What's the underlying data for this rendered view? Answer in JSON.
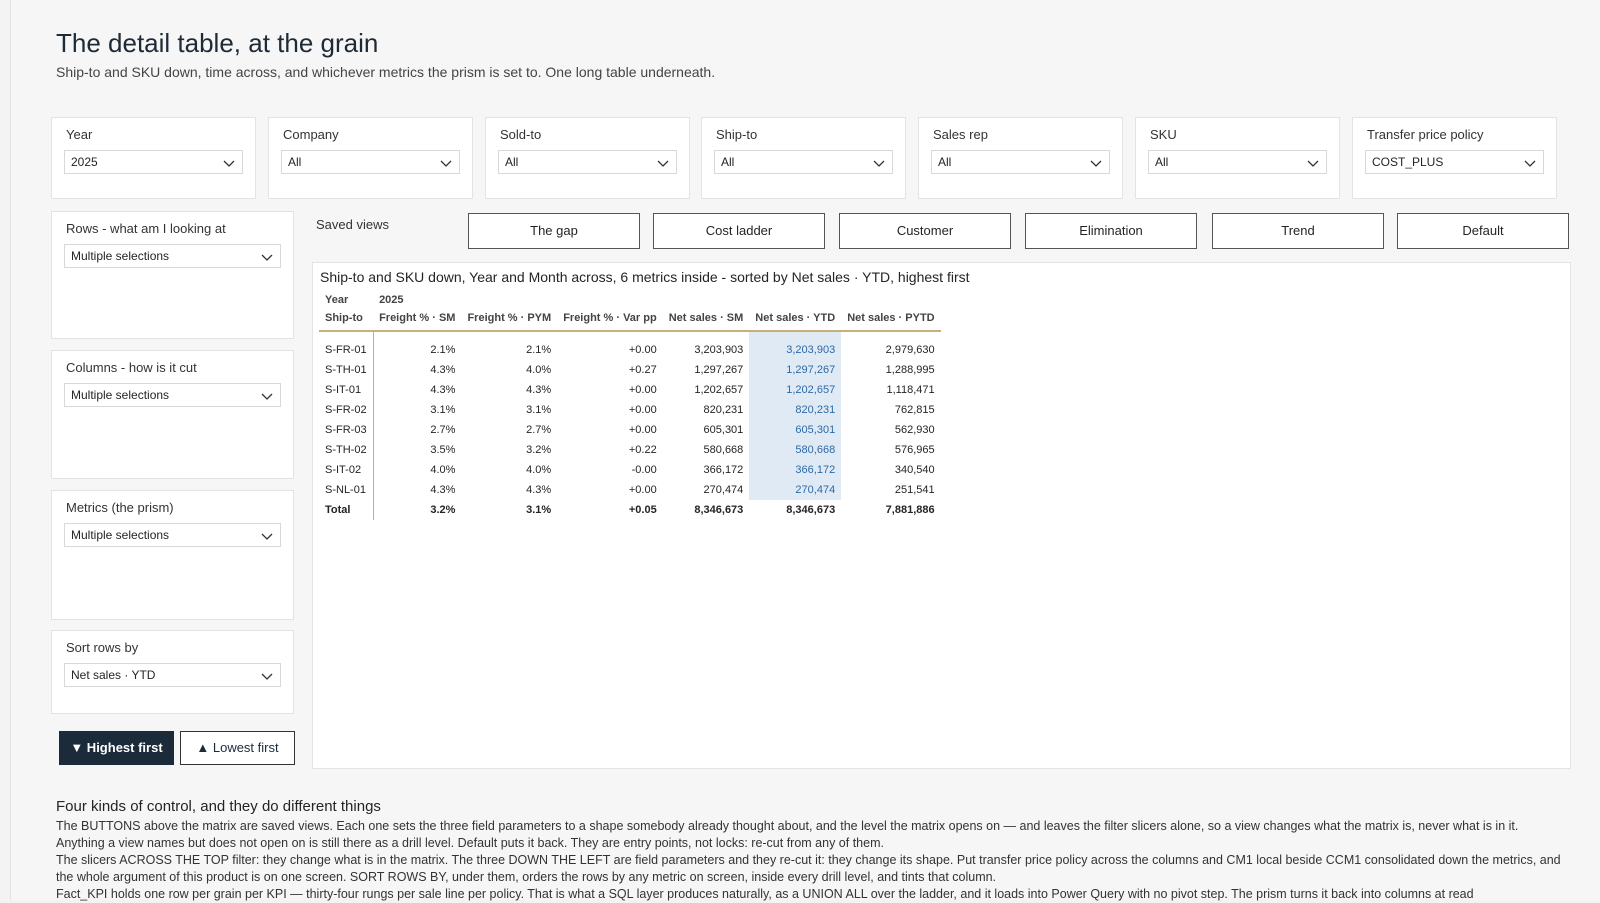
{
  "page": {
    "title": "The detail table, at the grain",
    "subtitle": "Ship-to and SKU down, time across, and whichever metrics the prism is set to. One long table underneath."
  },
  "slicers": [
    {
      "label": "Year",
      "value": "2025"
    },
    {
      "label": "Company",
      "value": "All"
    },
    {
      "label": "Sold-to",
      "value": "All"
    },
    {
      "label": "Ship-to",
      "value": "All"
    },
    {
      "label": "Sales rep",
      "value": "All"
    },
    {
      "label": "SKU",
      "value": "All"
    },
    {
      "label": "Transfer price policy",
      "value": "COST_PLUS"
    }
  ],
  "field_params": [
    {
      "label": "Rows - what am I looking at",
      "value": "Multiple selections"
    },
    {
      "label": "Columns - how is it cut",
      "value": "Multiple selections"
    },
    {
      "label": "Metrics (the prism)",
      "value": "Multiple selections"
    },
    {
      "label": "Sort rows by",
      "value": "Net sales · YTD"
    }
  ],
  "sort_buttons": {
    "highest": "▼ Highest first",
    "lowest": "▲ Lowest first"
  },
  "saved_views": {
    "label": "Saved views",
    "buttons": [
      "The gap",
      "Cost ladder",
      "Customer",
      "Elimination",
      "Trend",
      "Default"
    ]
  },
  "matrix": {
    "title": "Ship-to and SKU down, Year and Month across, 6 metrics inside - sorted by Net sales · YTD, highest first",
    "year_label": "Year",
    "year_value": "2025",
    "row_header": "Ship-to",
    "columns": [
      "Freight % · SM",
      "Freight % · PYM",
      "Freight % · Var pp",
      "Net sales · SM",
      "Net sales · YTD",
      "Net sales · PYTD"
    ],
    "rows": [
      {
        "name": "S-FR-01",
        "cells": [
          "2.1%",
          "2.1%",
          "+0.00",
          "3,203,903",
          "3,203,903",
          "2,979,630"
        ]
      },
      {
        "name": "S-TH-01",
        "cells": [
          "4.3%",
          "4.0%",
          "+0.27",
          "1,297,267",
          "1,297,267",
          "1,288,995"
        ]
      },
      {
        "name": "S-IT-01",
        "cells": [
          "4.3%",
          "4.3%",
          "+0.00",
          "1,202,657",
          "1,202,657",
          "1,118,471"
        ]
      },
      {
        "name": "S-FR-02",
        "cells": [
          "3.1%",
          "3.1%",
          "+0.00",
          "820,231",
          "820,231",
          "762,815"
        ]
      },
      {
        "name": "S-FR-03",
        "cells": [
          "2.7%",
          "2.7%",
          "+0.00",
          "605,301",
          "605,301",
          "562,930"
        ]
      },
      {
        "name": "S-TH-02",
        "cells": [
          "3.5%",
          "3.2%",
          "+0.22",
          "580,668",
          "580,668",
          "576,965"
        ]
      },
      {
        "name": "S-IT-02",
        "cells": [
          "4.0%",
          "4.0%",
          "-0.00",
          "366,172",
          "366,172",
          "340,540"
        ]
      },
      {
        "name": "S-NL-01",
        "cells": [
          "4.3%",
          "4.3%",
          "+0.00",
          "270,474",
          "270,474",
          "251,541"
        ]
      }
    ],
    "total": {
      "name": "Total",
      "cells": [
        "3.2%",
        "3.1%",
        "+0.05",
        "8,346,673",
        "8,346,673",
        "7,881,886"
      ]
    },
    "highlight_color": "#dfeaf5"
  },
  "notes": {
    "title": "Four kinds of control, and they do different things",
    "p1": "The BUTTONS above the matrix are saved views. Each one sets the three field parameters to a shape somebody already thought about, and the level the matrix opens on — and leaves the filter slicers alone, so a view changes what the matrix is, never what is in it. Anything a view names but does not open on is still there as a drill level. Default puts it back. They are entry points, not locks: re-cut from any of them.",
    "p2": "The slicers ACROSS THE TOP filter: they change what is in the matrix. The three DOWN THE LEFT are field parameters and they re-cut it: they change its shape. Put transfer price policy across the columns and CM1 local beside CCM1 consolidated down the metrics, and the whole argument of this product is on one screen. SORT ROWS BY, under them, orders the rows by any metric on screen, inside every drill level, and tints that column.",
    "p3": "Fact_KPI holds one row per grain per KPI — thirty-four rungs per sale line per policy. That is what a SQL layer produces naturally, as a UNION ALL over the ladder, and it loads into Power Query with no pivot step. The prism turns it back into columns at read"
  }
}
